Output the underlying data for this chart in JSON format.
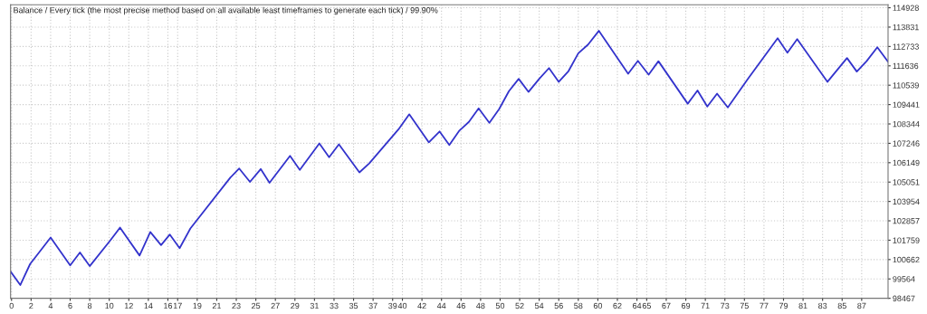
{
  "chart_data": {
    "type": "line",
    "title": "Balance / Every tick (the most precise method based on all available least timeframes to generate each tick) / 99.90%",
    "x": [
      -0.1,
      0.9,
      1.9,
      4.0,
      6.0,
      7.0,
      8.0,
      10.1,
      11.1,
      13.1,
      14.2,
      15.3,
      16.2,
      17.2,
      18.3,
      22.4,
      23.3,
      24.4,
      25.5,
      26.4,
      28.5,
      29.5,
      31.5,
      32.5,
      33.5,
      35.6,
      36.6,
      39.6,
      40.7,
      42.7,
      43.8,
      44.8,
      45.8,
      46.8,
      47.8,
      48.9,
      49.9,
      50.9,
      51.9,
      52.9,
      54.0,
      55.0,
      56.0,
      57.0,
      58.0,
      59.0,
      60.1,
      63.1,
      64.1,
      65.2,
      66.2,
      69.2,
      70.2,
      71.2,
      72.2,
      73.3,
      75.4,
      78.4,
      79.4,
      80.4,
      83.5,
      85.5,
      86.5,
      87.5,
      88.6,
      89.7
    ],
    "series": [
      {
        "color": "#3333cc",
        "values": [
          99980,
          99220,
          100410,
          101910,
          100330,
          101060,
          100290,
          101740,
          102470,
          100890,
          102220,
          101480,
          102080,
          101310,
          102420,
          105310,
          105820,
          105060,
          105790,
          105010,
          106540,
          105740,
          107240,
          106460,
          107190,
          105600,
          106110,
          108040,
          108890,
          107300,
          107920,
          107150,
          107950,
          108460,
          109230,
          108410,
          109190,
          110200,
          110900,
          110160,
          110900,
          111510,
          110730,
          111340,
          112350,
          112840,
          113620,
          111190,
          111920,
          111140,
          111900,
          109490,
          110240,
          109330,
          110060,
          109280,
          110930,
          113200,
          112380,
          113150,
          110730,
          112080,
          111310,
          111900,
          112690,
          111870
        ]
      }
    ],
    "xlim": [
      -0.1,
      89.7
    ],
    "xticks": [
      0,
      2,
      4,
      6,
      8,
      10,
      12,
      14,
      16,
      17,
      19,
      21,
      23,
      25,
      27,
      29,
      31,
      33,
      35,
      37,
      39,
      40,
      42,
      44,
      46,
      48,
      50,
      52,
      54,
      56,
      58,
      60,
      62,
      64,
      65,
      67,
      69,
      71,
      73,
      75,
      77,
      79,
      81,
      83,
      85,
      87
    ],
    "ylim": [
      98467,
      115100
    ],
    "yticks": [
      98467,
      99564,
      100662,
      101759,
      102857,
      103954,
      105051,
      106149,
      107246,
      108344,
      109441,
      110539,
      111636,
      112733,
      113831,
      114928
    ],
    "grid": true,
    "line_style": "solid",
    "marker": "none"
  }
}
